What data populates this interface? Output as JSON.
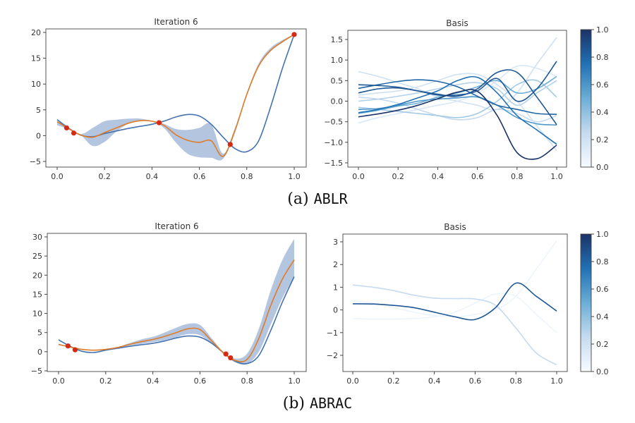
{
  "colors": {
    "true_fn": "#4472b0",
    "mean": "#e07b28",
    "band": "#a7bcd9",
    "obs": "#d62a12",
    "cmap_low": "#f7fbff",
    "cmap_high": "#08306b"
  },
  "captions": [
    {
      "label": "(a)",
      "name": "ABLR"
    },
    {
      "label": "(b)",
      "name": "ABRAC"
    }
  ],
  "chart_data": [
    {
      "id": "ablr-iter",
      "type": "line",
      "title": "Iteration 6",
      "xlim": [
        0,
        1
      ],
      "ylim": [
        -5,
        20
      ],
      "xticks": [
        "0.0",
        "0.2",
        "0.4",
        "0.6",
        "0.8",
        "1.0"
      ],
      "yticks": [
        "-5",
        "0",
        "5",
        "10",
        "15",
        "20"
      ],
      "x": [
        0,
        0.05,
        0.1,
        0.15,
        0.2,
        0.25,
        0.3,
        0.35,
        0.4,
        0.45,
        0.5,
        0.55,
        0.6,
        0.65,
        0.7,
        0.75,
        0.8,
        0.85,
        0.9,
        0.95,
        1.0
      ],
      "true": [
        3.1,
        1.4,
        0.1,
        -0.2,
        0.4,
        0.9,
        1.4,
        1.8,
        2.2,
        2.8,
        3.6,
        4.1,
        3.8,
        2.2,
        -0.3,
        -2.5,
        -3.1,
        -1.0,
        5.5,
        13,
        19.6
      ],
      "mean": [
        2.7,
        1.3,
        0.1,
        -0.3,
        0.6,
        1.5,
        2.4,
        2.9,
        2.8,
        2.0,
        0.2,
        -0.9,
        -1.3,
        -1.0,
        -4.0,
        1.0,
        8.0,
        13.5,
        16.5,
        18.2,
        19.6
      ],
      "lower": [
        2.0,
        1.2,
        0.1,
        -2.0,
        -1.2,
        0.8,
        2.3,
        2.8,
        2.7,
        1.5,
        -1.3,
        -3.5,
        -4.2,
        -4.3,
        -4.5,
        0.5,
        8.0,
        13.3,
        16.3,
        18.0,
        19.5
      ],
      "upper": [
        2.8,
        1.5,
        0.3,
        1.5,
        2.8,
        3.1,
        3.3,
        3.3,
        2.9,
        2.3,
        1.3,
        1.1,
        1.5,
        2.2,
        -3.5,
        1.5,
        8.3,
        14.0,
        17.0,
        18.5,
        19.7
      ],
      "observations": [
        [
          0.04,
          1.5
        ],
        [
          0.07,
          0.5
        ],
        [
          0.43,
          2.5
        ],
        [
          0.73,
          -1.7
        ],
        [
          1.0,
          19.6
        ]
      ]
    },
    {
      "id": "ablr-basis",
      "type": "line",
      "title": "Basis",
      "xlim": [
        0,
        1
      ],
      "ylim": [
        -1.5,
        1.5
      ],
      "xticks": [
        "0.0",
        "0.2",
        "0.4",
        "0.6",
        "0.8",
        "1.0"
      ],
      "yticks": [
        "-1.5",
        "-1.0",
        "-0.5",
        "0.0",
        "0.5",
        "1.0",
        "1.5"
      ],
      "colorbar": {
        "range": [
          0,
          1
        ],
        "ticks": [
          "0.0",
          "0.2",
          "0.4",
          "0.6",
          "0.8",
          "1.0"
        ]
      },
      "x": [
        0,
        0.1,
        0.2,
        0.3,
        0.4,
        0.5,
        0.6,
        0.7,
        0.8,
        0.9,
        1.0
      ],
      "basis": [
        {
          "weight": 0.2,
          "values": [
            0.72,
            0.6,
            0.45,
            0.3,
            0.1,
            0.0,
            -0.1,
            -0.2,
            0.2,
            0.9,
            1.55
          ]
        },
        {
          "weight": 0.15,
          "values": [
            -0.53,
            -0.4,
            -0.3,
            -0.2,
            -0.1,
            0.0,
            0.2,
            0.5,
            0.85,
            0.8,
            0.6
          ]
        },
        {
          "weight": 0.25,
          "values": [
            0.1,
            0.05,
            -0.05,
            -0.2,
            -0.35,
            -0.45,
            -0.4,
            -0.2,
            -0.3,
            -0.5,
            -0.35
          ]
        },
        {
          "weight": 0.2,
          "values": [
            0.15,
            0.2,
            0.25,
            0.35,
            0.5,
            0.65,
            0.65,
            0.4,
            0.0,
            -0.6,
            -1.2
          ]
        },
        {
          "weight": 0.35,
          "values": [
            -0.15,
            -0.2,
            -0.25,
            -0.3,
            -0.35,
            -0.4,
            -0.3,
            0.0,
            0.4,
            0.5,
            0.1
          ]
        },
        {
          "weight": 0.3,
          "values": [
            0.0,
            0.05,
            0.12,
            0.2,
            0.3,
            0.4,
            0.45,
            0.3,
            -0.1,
            0.2,
            0.5
          ]
        },
        {
          "weight": 0.5,
          "values": [
            -0.3,
            -0.22,
            -0.12,
            -0.05,
            0.1,
            0.2,
            0.35,
            0.5,
            0.2,
            0.3,
            0.6
          ]
        },
        {
          "weight": 0.6,
          "values": [
            -0.2,
            -0.18,
            -0.1,
            0.0,
            0.05,
            0.08,
            0.1,
            -0.1,
            -0.4,
            -0.55,
            -0.58
          ]
        },
        {
          "weight": 0.75,
          "values": [
            -0.28,
            -0.2,
            -0.08,
            0.08,
            0.25,
            0.5,
            0.58,
            0.2,
            -0.35,
            -0.7,
            -1.05
          ]
        },
        {
          "weight": 0.8,
          "values": [
            0.31,
            0.4,
            0.48,
            0.52,
            0.48,
            0.35,
            0.12,
            -0.1,
            -0.2,
            -0.3,
            -0.32
          ]
        },
        {
          "weight": 0.85,
          "values": [
            0.2,
            0.3,
            0.32,
            0.25,
            0.15,
            0.15,
            0.25,
            0.55,
            0.0,
            0.3,
            0.97
          ]
        },
        {
          "weight": 0.85,
          "values": [
            0.4,
            0.38,
            0.34,
            0.25,
            0.17,
            0.12,
            0.3,
            0.7,
            0.7,
            0.1,
            -0.57
          ]
        },
        {
          "weight": 1.0,
          "values": [
            -0.38,
            -0.31,
            -0.22,
            -0.1,
            0.06,
            0.22,
            0.24,
            -0.35,
            -1.25,
            -1.4,
            -1.07
          ]
        }
      ]
    },
    {
      "id": "abrac-iter",
      "type": "line",
      "title": "Iteration 6",
      "xlim": [
        0,
        1
      ],
      "ylim": [
        -5,
        30
      ],
      "xticks": [
        "0.0",
        "0.2",
        "0.4",
        "0.6",
        "0.8",
        "1.0"
      ],
      "yticks": [
        "-5",
        "0",
        "5",
        "10",
        "15",
        "20",
        "25",
        "30"
      ],
      "x": [
        0,
        0.05,
        0.1,
        0.15,
        0.2,
        0.25,
        0.3,
        0.35,
        0.4,
        0.45,
        0.5,
        0.55,
        0.6,
        0.65,
        0.7,
        0.75,
        0.8,
        0.85,
        0.9,
        0.95,
        1.0
      ],
      "true": [
        3.1,
        1.4,
        0.1,
        -0.2,
        0.4,
        0.9,
        1.4,
        1.8,
        2.2,
        2.8,
        3.6,
        4.1,
        3.8,
        2.2,
        -0.3,
        -2.5,
        -3.1,
        -1.0,
        5.5,
        13,
        19.6
      ],
      "mean": [
        1.9,
        1.2,
        0.6,
        0.4,
        0.6,
        1.1,
        1.9,
        2.6,
        3.2,
        4.0,
        5.0,
        6.0,
        5.8,
        2.8,
        -0.3,
        -2.3,
        -2.0,
        3.5,
        12,
        19,
        24
      ],
      "lower": [
        1.7,
        1.1,
        0.5,
        0.3,
        0.5,
        1.0,
        1.6,
        2.0,
        2.5,
        3.0,
        3.8,
        4.6,
        4.3,
        2.2,
        -0.5,
        -2.8,
        -3.2,
        0,
        7,
        14,
        19.5
      ],
      "upper": [
        2.1,
        1.3,
        0.7,
        0.5,
        0.7,
        1.2,
        2.2,
        3.2,
        3.9,
        5.0,
        6.3,
        7.3,
        7.0,
        3.5,
        -0.1,
        -1.8,
        -0.5,
        6,
        16,
        24,
        29.5
      ],
      "observations": [
        [
          0.04,
          1.5
        ],
        [
          0.07,
          0.5
        ],
        [
          0.71,
          -0.6
        ],
        [
          0.73,
          -1.6
        ]
      ]
    },
    {
      "id": "abrac-basis",
      "type": "line",
      "title": "Basis",
      "xlim": [
        0,
        1
      ],
      "ylim": [
        -2,
        3
      ],
      "xticks": [
        "0.0",
        "0.2",
        "0.4",
        "0.6",
        "0.8",
        "1.0"
      ],
      "yticks": [
        "-2",
        "-1",
        "0",
        "1",
        "2",
        "3"
      ],
      "colorbar": {
        "range": [
          0,
          1
        ],
        "ticks": [
          "0.0",
          "0.2",
          "0.4",
          "0.6",
          "0.8",
          "1.0"
        ]
      },
      "x": [
        0,
        0.1,
        0.2,
        0.3,
        0.4,
        0.5,
        0.6,
        0.7,
        0.8,
        0.9,
        1.0
      ],
      "basis": [
        {
          "weight": 0.05,
          "values": [
            -0.38,
            -0.4,
            -0.4,
            -0.38,
            -0.3,
            -0.1,
            0.3,
            0.7,
            0.6,
            -0.2,
            -1.0
          ]
        },
        {
          "weight": 0.05,
          "values": [
            0.4,
            0.3,
            0.1,
            -0.1,
            -0.25,
            -0.3,
            -0.2,
            0.0,
            0.6,
            1.8,
            3.05
          ]
        },
        {
          "weight": 0.25,
          "values": [
            1.1,
            1.0,
            0.85,
            0.65,
            0.52,
            0.5,
            0.48,
            0.2,
            -0.8,
            -1.9,
            -2.42
          ]
        },
        {
          "weight": 0.85,
          "values": [
            0.27,
            0.26,
            0.2,
            0.1,
            -0.1,
            -0.3,
            -0.42,
            0.1,
            1.18,
            0.6,
            -0.05
          ]
        }
      ]
    }
  ]
}
